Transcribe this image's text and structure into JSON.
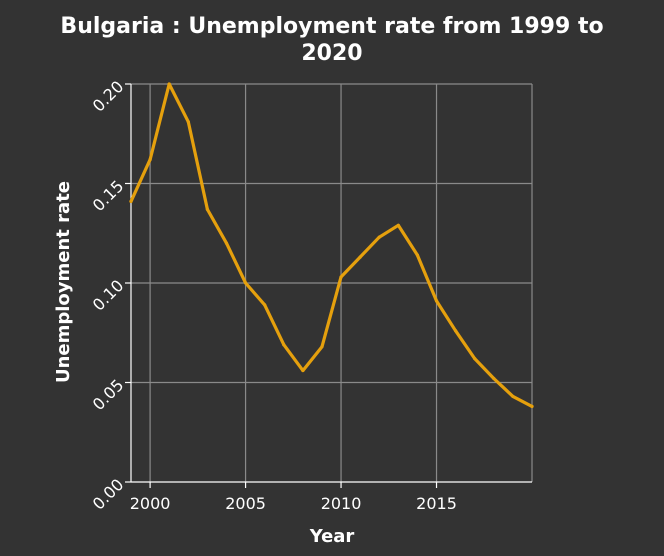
{
  "chart_data": {
    "type": "line",
    "title_line1": "Bulgaria : Unemployment rate from 1999 to",
    "title_line2": "2020",
    "xlabel": "Year",
    "ylabel": "Unemployment rate",
    "xlim": [
      1999,
      2020
    ],
    "ylim": [
      0,
      0.2
    ],
    "x_ticks": [
      2000,
      2005,
      2010,
      2015
    ],
    "x_tick_labels": [
      "2000",
      "2005",
      "2010",
      "2015"
    ],
    "y_ticks": [
      0,
      0.05,
      0.1,
      0.15,
      0.2
    ],
    "y_tick_labels": [
      "0.00",
      "0.05",
      "0.10",
      "0.15",
      "0.20"
    ],
    "grid": true,
    "line_color": "#e5a00d",
    "background_color": "#333333",
    "x": [
      1999,
      2000,
      2001,
      2002,
      2003,
      2004,
      2005,
      2006,
      2007,
      2008,
      2009,
      2010,
      2011,
      2012,
      2013,
      2014,
      2015,
      2016,
      2017,
      2018,
      2019,
      2020
    ],
    "values": [
      0.141,
      0.162,
      0.2,
      0.181,
      0.137,
      0.12,
      0.1,
      0.089,
      0.069,
      0.056,
      0.068,
      0.103,
      0.113,
      0.123,
      0.129,
      0.114,
      0.091,
      0.076,
      0.062,
      0.052,
      0.043,
      0.038
    ]
  }
}
